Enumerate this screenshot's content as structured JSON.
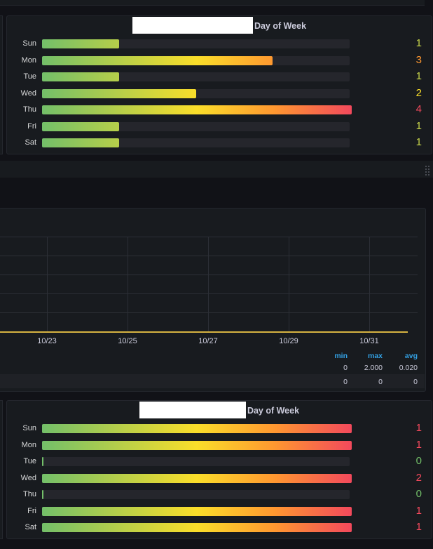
{
  "colors": {
    "green": "#73bf69",
    "yellow": "#fade2a",
    "orange": "#ff9830",
    "red": "#f2495c",
    "line": "#d6b341"
  },
  "top_panel": {
    "title": "Day of Week",
    "max": 4,
    "rows": [
      {
        "day": "Sun",
        "value": "1",
        "v": 1,
        "color": "#c5d34a"
      },
      {
        "day": "Mon",
        "value": "3",
        "v": 3,
        "color": "#ff9830"
      },
      {
        "day": "Tue",
        "value": "1",
        "v": 1,
        "color": "#c5d34a"
      },
      {
        "day": "Wed",
        "value": "2",
        "v": 2,
        "color": "#fade2a"
      },
      {
        "day": "Thu",
        "value": "4",
        "v": 4,
        "color": "#f2495c"
      },
      {
        "day": "Fri",
        "value": "1",
        "v": 1,
        "color": "#c5d34a"
      },
      {
        "day": "Sat",
        "value": "1",
        "v": 1,
        "color": "#c5d34a"
      }
    ]
  },
  "graph_panel": {
    "x_ticks": [
      "10/23",
      "10/25",
      "10/27",
      "10/29",
      "10/31"
    ],
    "legend": {
      "headers": [
        "min",
        "max",
        "avg"
      ],
      "row1": [
        "0",
        "2.000",
        "0.020"
      ],
      "row2": [
        "0",
        "0",
        "0"
      ]
    }
  },
  "bottom_panel": {
    "title": "Day of Week",
    "max": 1,
    "rows": [
      {
        "day": "Sun",
        "value": "1",
        "v": 1,
        "color": "#f2495c"
      },
      {
        "day": "Mon",
        "value": "1",
        "v": 1,
        "color": "#f2495c"
      },
      {
        "day": "Tue",
        "value": "0",
        "v": 0,
        "color": "#73bf69"
      },
      {
        "day": "Wed",
        "value": "2",
        "v": 1,
        "color": "#f2495c"
      },
      {
        "day": "Thu",
        "value": "0",
        "v": 0,
        "color": "#73bf69"
      },
      {
        "day": "Fri",
        "value": "1",
        "v": 1,
        "color": "#f2495c"
      },
      {
        "day": "Sat",
        "value": "1",
        "v": 1,
        "color": "#f2495c"
      }
    ]
  }
}
